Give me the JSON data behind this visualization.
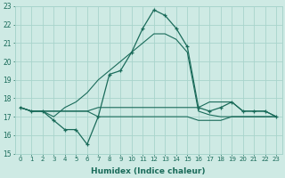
{
  "xlabel": "Humidex (Indice chaleur)",
  "x": [
    0,
    1,
    2,
    3,
    4,
    5,
    6,
    7,
    8,
    9,
    10,
    11,
    12,
    13,
    14,
    15,
    16,
    17,
    18,
    19,
    20,
    21,
    22,
    23
  ],
  "line_main": [
    17.5,
    17.3,
    17.3,
    16.8,
    16.3,
    16.3,
    15.5,
    17.0,
    19.3,
    19.5,
    20.5,
    21.8,
    22.8,
    22.5,
    21.8,
    20.8,
    17.5,
    17.3,
    17.5,
    17.8,
    17.3,
    17.3,
    17.3,
    17.0
  ],
  "line_smooth": [
    17.5,
    17.3,
    17.3,
    17.0,
    17.5,
    17.8,
    18.3,
    19.0,
    19.5,
    20.0,
    20.5,
    21.0,
    21.5,
    21.5,
    21.2,
    20.5,
    17.3,
    17.1,
    17.0,
    17.0,
    17.0,
    17.0,
    17.0,
    17.0
  ],
  "line_flat1": [
    17.5,
    17.3,
    17.3,
    17.3,
    17.3,
    17.3,
    17.3,
    17.5,
    17.5,
    17.5,
    17.5,
    17.5,
    17.5,
    17.5,
    17.5,
    17.5,
    17.5,
    17.8,
    17.8,
    17.8,
    17.3,
    17.3,
    17.3,
    17.0
  ],
  "line_flat2": [
    17.5,
    17.3,
    17.3,
    17.3,
    17.3,
    17.3,
    17.3,
    17.0,
    17.0,
    17.0,
    17.0,
    17.0,
    17.0,
    17.0,
    17.0,
    17.0,
    16.8,
    16.8,
    16.8,
    17.0,
    17.0,
    17.0,
    17.0,
    17.0
  ],
  "line_color": "#1a6b5a",
  "bg_color": "#ceeae4",
  "grid_color": "#a8d4cc",
  "ylim": [
    15,
    23
  ],
  "yticks": [
    15,
    16,
    17,
    18,
    19,
    20,
    21,
    22,
    23
  ],
  "xticks": [
    0,
    1,
    2,
    3,
    4,
    5,
    6,
    7,
    8,
    9,
    10,
    11,
    12,
    13,
    14,
    15,
    16,
    17,
    18,
    19,
    20,
    21,
    22,
    23
  ]
}
